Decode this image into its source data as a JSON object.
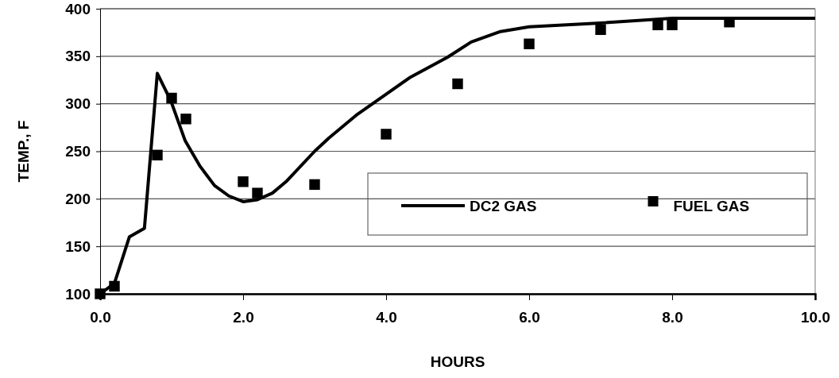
{
  "chart_data": {
    "type": "line",
    "xlabel": "HOURS",
    "ylabel": "TEMP., F",
    "xlim": [
      0,
      10
    ],
    "xticks": [
      {
        "value": 0,
        "label": "0.0"
      },
      {
        "value": 2,
        "label": "2.0"
      },
      {
        "value": 4,
        "label": "4.0"
      },
      {
        "value": 6,
        "label": "6.0"
      },
      {
        "value": 8,
        "label": "8.0"
      },
      {
        "value": 10,
        "label": "10.0"
      }
    ],
    "ylim": [
      100,
      400
    ],
    "yticks": [
      100,
      150,
      200,
      250,
      300,
      350,
      400
    ],
    "grid": "y",
    "legend": "right",
    "series": [
      {
        "name": "DC2 GAS",
        "color": "#000000",
        "marker": "none",
        "line_style": "solid",
        "x": [
          0,
          0.2,
          0.41,
          0.62,
          0.8,
          0.99,
          1.19,
          1.4,
          1.6,
          1.8,
          2.0,
          2.2,
          2.41,
          2.6,
          3.0,
          3.2,
          3.6,
          4.0,
          4.34,
          4.86,
          5.19,
          5.6,
          6.0,
          7.0,
          8.0,
          10.0
        ],
        "values": [
          100,
          111,
          160,
          169,
          332,
          303,
          261,
          234,
          214,
          203,
          197,
          199,
          206,
          218,
          250,
          264,
          289,
          310,
          328,
          349,
          365,
          376,
          381,
          385,
          390,
          390
        ]
      },
      {
        "name": "FUEL GAS",
        "type": "scatter",
        "color": "#000000",
        "marker": "square",
        "x": [
          0,
          0.2,
          0.8,
          1.0,
          1.2,
          2.0,
          2.2,
          3.0,
          4.0,
          5.0,
          6.0,
          7.0,
          7.8,
          8.0,
          8.8
        ],
        "values": [
          100,
          108,
          246,
          306,
          284,
          218,
          206,
          215,
          268,
          321,
          363,
          378,
          383,
          383,
          386
        ]
      }
    ]
  }
}
